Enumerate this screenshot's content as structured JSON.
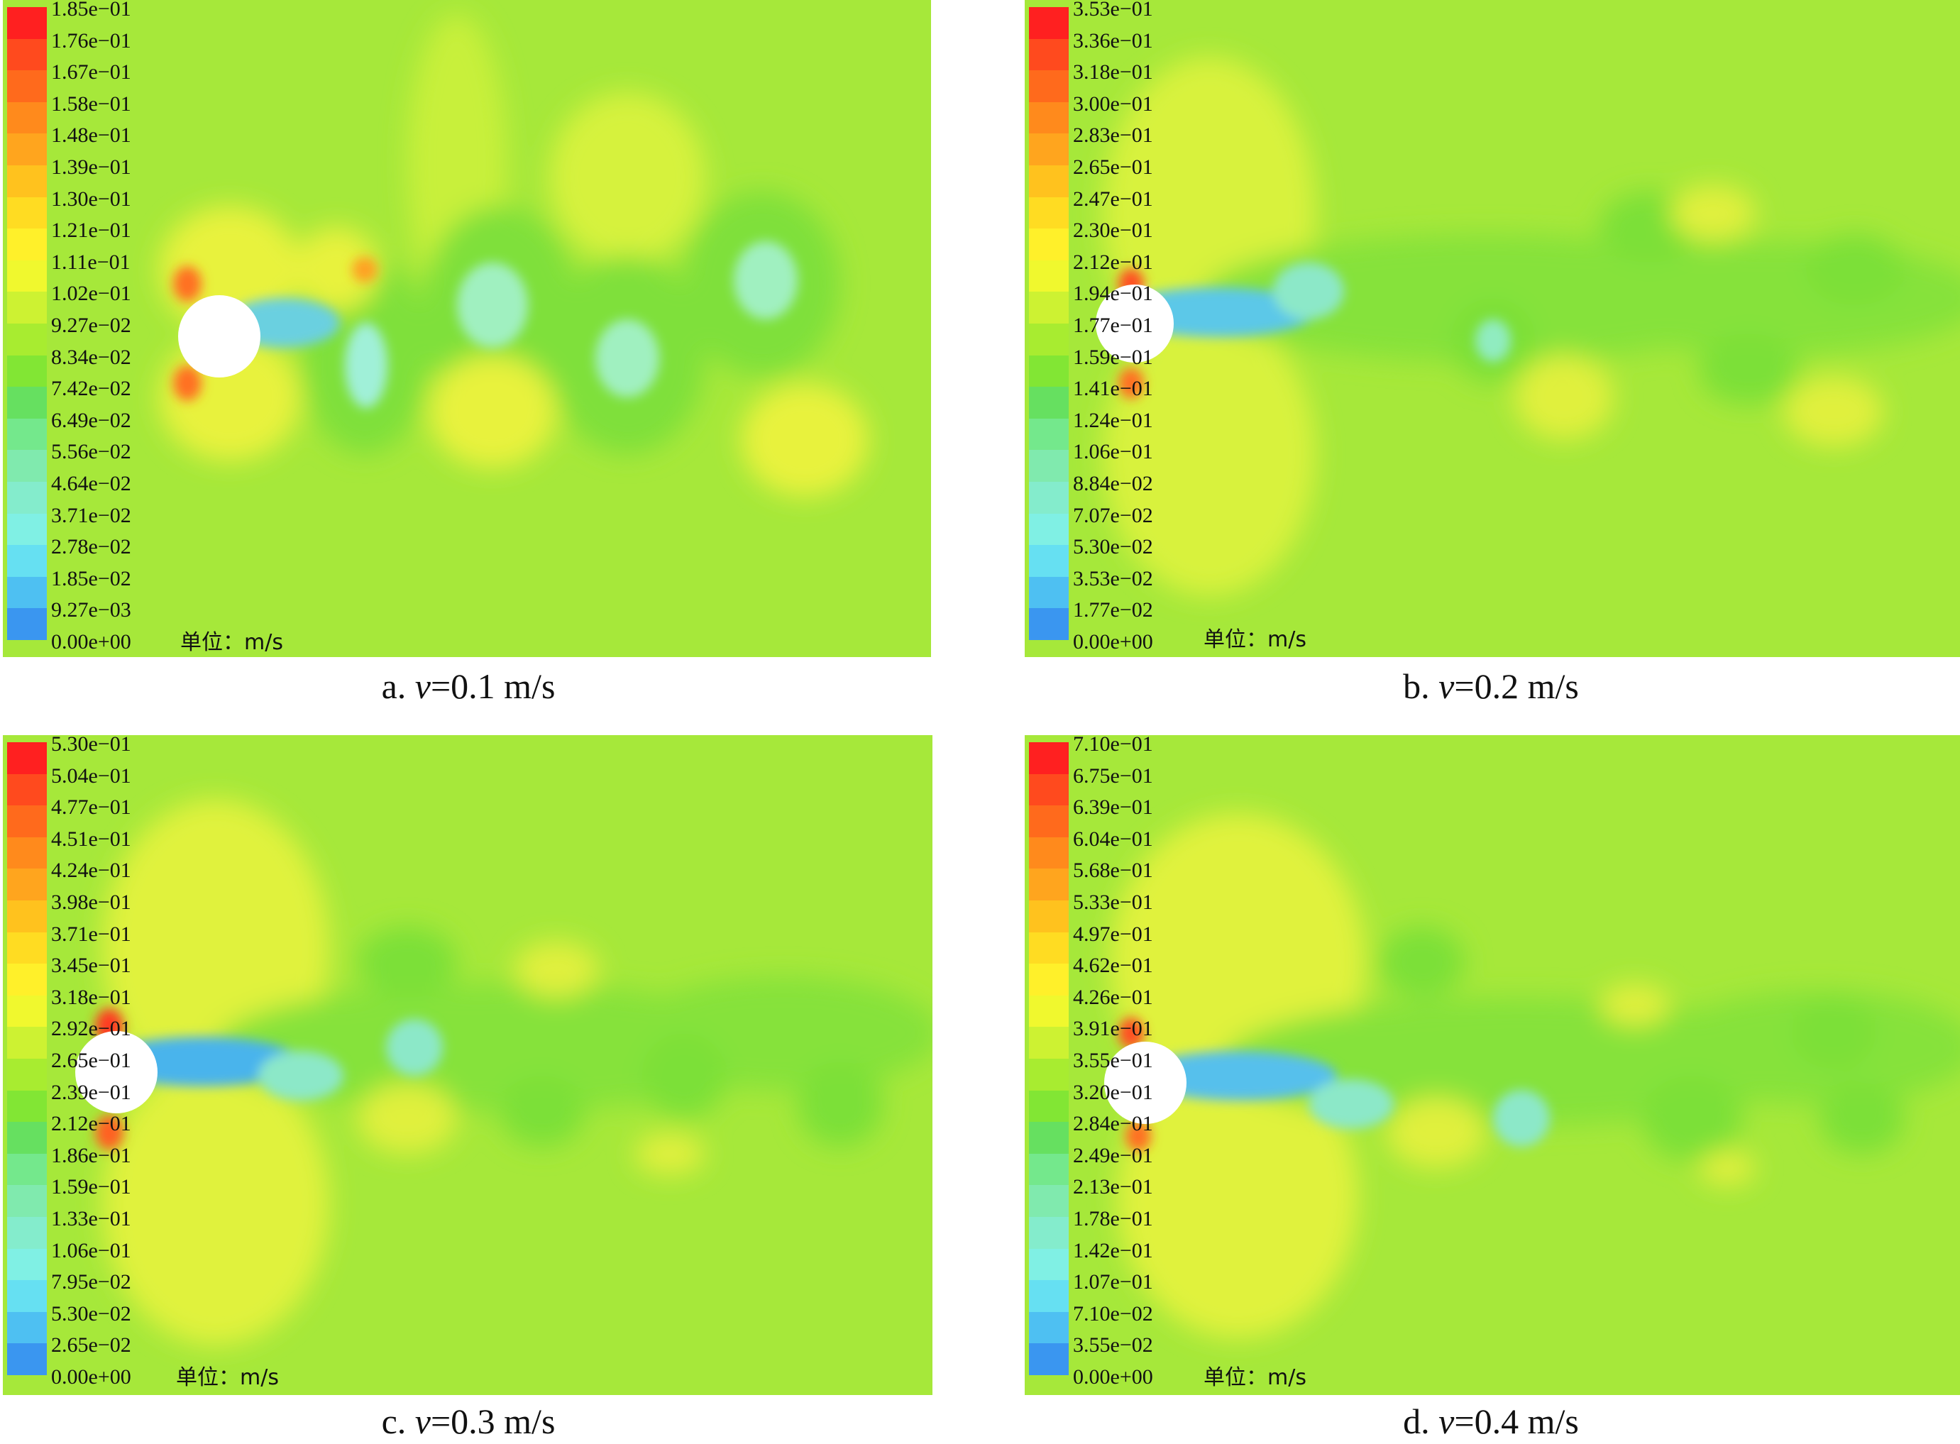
{
  "figure": {
    "unit_label": "单位：m/s",
    "panels": [
      {
        "id": "a",
        "caption_prefix": "a.",
        "caption_var": "v",
        "caption_value": "=0.1 m/s",
        "legend": [
          "1.85e−01",
          "1.76e−01",
          "1.67e−01",
          "1.58e−01",
          "1.48e−01",
          "1.39e−01",
          "1.30e−01",
          "1.21e−01",
          "1.11e−01",
          "1.02e−01",
          "9.27e−02",
          "8.34e−02",
          "7.42e−02",
          "6.49e−02",
          "5.56e−02",
          "4.64e−02",
          "3.71e−02",
          "2.78e−02",
          "1.85e−02",
          "9.27e−03",
          "0.00e+00"
        ]
      },
      {
        "id": "b",
        "caption_prefix": "b.",
        "caption_var": "v",
        "caption_value": "=0.2 m/s",
        "legend": [
          "3.53e−01",
          "3.36e−01",
          "3.18e−01",
          "3.00e−01",
          "2.83e−01",
          "2.65e−01",
          "2.47e−01",
          "2.30e−01",
          "2.12e−01",
          "1.94e−01",
          "1.77e−01",
          "1.59e−01",
          "1.41e−01",
          "1.24e−01",
          "1.06e−01",
          "8.84e−02",
          "7.07e−02",
          "5.30e−02",
          "3.53e−02",
          "1.77e−02",
          "0.00e+00"
        ]
      },
      {
        "id": "c",
        "caption_prefix": "c.",
        "caption_var": "v",
        "caption_value": "=0.3 m/s",
        "legend": [
          "5.30e−01",
          "5.04e−01",
          "4.77e−01",
          "4.51e−01",
          "4.24e−01",
          "3.98e−01",
          "3.71e−01",
          "3.45e−01",
          "3.18e−01",
          "2.92e−01",
          "2.65e−01",
          "2.39e−01",
          "2.12e−01",
          "1.86e−01",
          "1.59e−01",
          "1.33e−01",
          "1.06e−01",
          "7.95e−02",
          "5.30e−02",
          "2.65e−02",
          "0.00e+00"
        ]
      },
      {
        "id": "d",
        "caption_prefix": "d.",
        "caption_var": "v",
        "caption_value": "=0.4 m/s",
        "legend": [
          "7.10e−01",
          "6.75e−01",
          "6.39e−01",
          "6.04e−01",
          "5.68e−01",
          "5.33e−01",
          "4.97e−01",
          "4.62e−01",
          "4.26e−01",
          "3.91e−01",
          "3.55e−01",
          "3.20e−01",
          "2.84e−01",
          "2.49e−01",
          "2.13e−01",
          "1.78e−01",
          "1.42e−01",
          "1.07e−01",
          "7.10e−02",
          "3.55e−02",
          "0.00e+00"
        ]
      }
    ],
    "colormap": [
      "#ff2020",
      "#ff4a1e",
      "#ff6a1c",
      "#ff8a1c",
      "#ffa51e",
      "#ffc21e",
      "#ffdc22",
      "#fff02a",
      "#f0f82e",
      "#cdf232",
      "#a8ec30",
      "#82e634",
      "#66e060",
      "#74e88c",
      "#80eaae",
      "#84eccc",
      "#80f0e4",
      "#66e0f2",
      "#4ec0f2",
      "#3a96f0",
      "#2060f0"
    ]
  }
}
